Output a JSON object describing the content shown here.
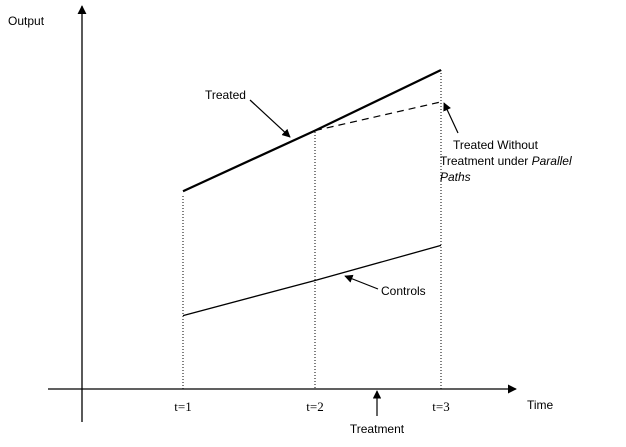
{
  "chart_data": {
    "type": "line",
    "xlabel": "Time",
    "ylabel": "Output",
    "x_ticks": [
      "t=1",
      "t=2",
      "t=3"
    ],
    "treatment_label": "Treatment",
    "series": [
      {
        "name": "Treated",
        "style": "solid-thick",
        "points": [
          [
            1,
            0.62
          ],
          [
            2,
            0.81
          ],
          [
            3,
            1.0
          ]
        ]
      },
      {
        "name": "Treated Without Treatment under Parallel Paths",
        "style": "dashed",
        "points": [
          [
            2,
            0.81
          ],
          [
            3,
            0.9
          ]
        ]
      },
      {
        "name": "Controls",
        "style": "solid",
        "points": [
          [
            1,
            0.23
          ],
          [
            2,
            0.34
          ],
          [
            3,
            0.45
          ]
        ]
      }
    ],
    "annotations": {
      "treated": "Treated",
      "counterfactual_line1": "Treated Without",
      "counterfactual_line2_prefix": "Treatment under ",
      "counterfactual_line2_italic": "Parallel",
      "counterfactual_line3_italic": "Paths",
      "controls": "Controls"
    }
  }
}
